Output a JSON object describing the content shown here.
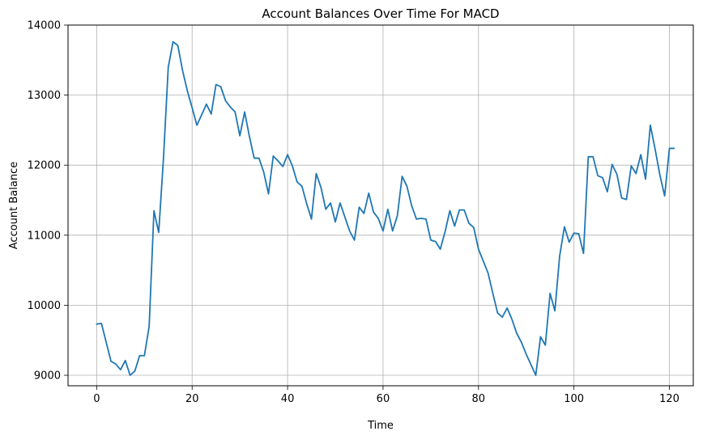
{
  "chart_data": {
    "type": "line",
    "title": "Account Balances Over Time For MACD",
    "xlabel": "Time",
    "ylabel": "Account Balance",
    "xlim": [
      -6,
      125
    ],
    "ylim": [
      8850,
      14000
    ],
    "xticks": [
      0,
      20,
      40,
      60,
      80,
      100,
      120
    ],
    "yticks": [
      9000,
      10000,
      11000,
      12000,
      13000,
      14000
    ],
    "grid": true,
    "colors": {
      "series": "#1f77b4",
      "grid": "#b0b0b0",
      "axes": "#000000"
    },
    "series": [
      {
        "x": [
          0,
          1,
          2,
          3,
          4,
          5,
          6,
          7,
          8,
          9,
          10,
          11,
          12,
          13,
          14,
          15,
          16,
          17,
          18,
          19,
          20,
          21,
          22,
          23,
          24,
          25,
          26,
          27,
          28,
          29,
          30,
          31,
          32,
          33,
          34,
          35,
          36,
          37,
          38,
          39,
          40,
          41,
          42,
          43,
          44,
          45,
          46,
          47,
          48,
          49,
          50,
          51,
          52,
          53,
          54,
          55,
          56,
          57,
          58,
          59,
          60,
          61,
          62,
          63,
          64,
          65,
          66,
          67,
          68,
          69,
          70,
          71,
          72,
          73,
          74,
          75,
          76,
          77,
          78,
          79,
          80,
          81,
          82,
          83,
          84,
          85,
          86,
          87,
          88,
          89,
          90,
          91,
          92,
          93,
          94,
          95,
          96,
          97,
          98,
          99,
          100,
          101,
          102,
          103,
          104,
          105,
          106,
          107,
          108,
          109,
          110,
          111,
          112,
          113,
          114,
          115,
          116,
          117,
          118,
          119,
          120,
          121
        ],
        "values": [
          9730,
          9740,
          9470,
          9200,
          9160,
          9080,
          9210,
          9000,
          9060,
          9280,
          9280,
          9700,
          11350,
          11040,
          12100,
          13400,
          13760,
          13710,
          13350,
          13060,
          12820,
          12570,
          12720,
          12870,
          12730,
          13150,
          13120,
          12920,
          12830,
          12760,
          12420,
          12760,
          12410,
          12100,
          12100,
          11900,
          11590,
          12130,
          12060,
          11980,
          12150,
          11990,
          11760,
          11700,
          11450,
          11230,
          11880,
          11680,
          11370,
          11460,
          11190,
          11460,
          11260,
          11060,
          10930,
          11400,
          11310,
          11600,
          11330,
          11240,
          11060,
          11370,
          11060,
          11280,
          11840,
          11700,
          11420,
          11230,
          11240,
          11230,
          10930,
          10910,
          10800,
          11050,
          11350,
          11130,
          11360,
          11360,
          11170,
          11110,
          10800,
          10630,
          10460,
          10170,
          9890,
          9830,
          9960,
          9800,
          9600,
          9470,
          9300,
          9150,
          9000,
          9550,
          9430,
          10170,
          9920,
          10700,
          11120,
          10900,
          11030,
          11020,
          10740,
          12120,
          12120,
          11850,
          11820,
          11620,
          12010,
          11870,
          11530,
          11510,
          11990,
          11880,
          12150,
          11800,
          12570,
          12230,
          11860,
          11560,
          12240,
          12240
        ]
      }
    ]
  }
}
